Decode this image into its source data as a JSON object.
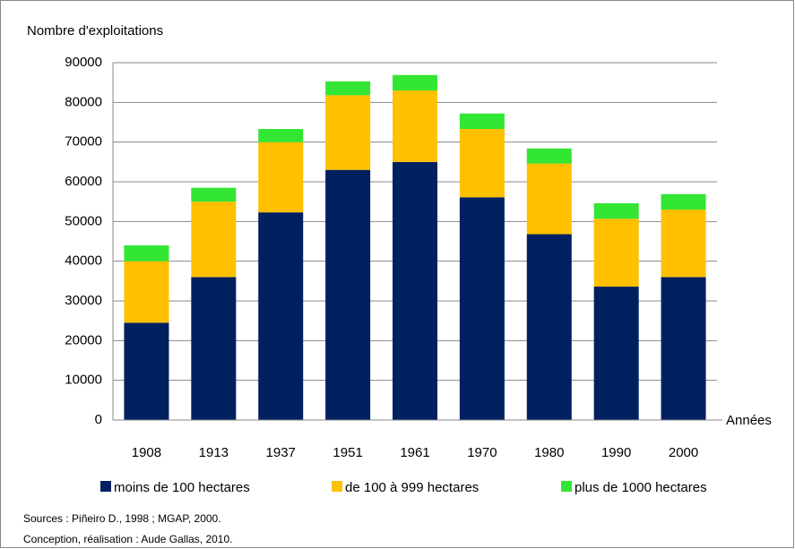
{
  "chart_data": {
    "type": "stacked_bar",
    "y_label": "Nombre d'exploitations",
    "x_label": "Années",
    "categories": [
      "1908",
      "1913",
      "1937",
      "1951",
      "1961",
      "1970",
      "1980",
      "1990",
      "2000"
    ],
    "series": [
      {
        "name": "moins de 100 hectares",
        "color": "#002060",
        "values": [
          24500,
          36000,
          52300,
          63000,
          65000,
          56100,
          46800,
          33600,
          36000
        ]
      },
      {
        "name": "de 100 à 999 hectares",
        "color": "#ffc000",
        "values": [
          15500,
          19000,
          17700,
          18800,
          18000,
          17200,
          17800,
          17100,
          17000
        ]
      },
      {
        "name": "plus de 1000 hectares",
        "color": "#33e633",
        "values": [
          4000,
          3500,
          3300,
          3500,
          3900,
          3900,
          3800,
          3900,
          3900
        ]
      }
    ],
    "ylim": [
      0,
      90000
    ],
    "yticks": [
      0,
      10000,
      20000,
      30000,
      40000,
      50000,
      60000,
      70000,
      80000,
      90000
    ],
    "grid": true,
    "notes": [
      "Sources : Piñeiro D., 1998 ; MGAP, 2000.",
      "Conception, réalisation : Aude Gallas, 2010."
    ]
  }
}
